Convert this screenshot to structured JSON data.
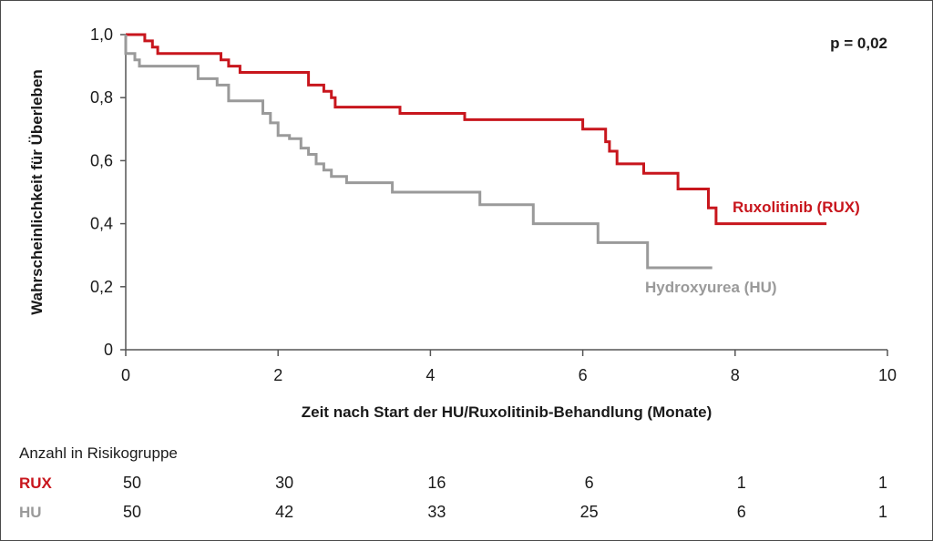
{
  "chart_data": {
    "type": "line",
    "subtype": "kaplan-meier",
    "xlabel": "Zeit nach Start der HU/Ruxolitinib-Behandlung (Monate)",
    "ylabel": "Wahrscheinlichkeit für Überleben",
    "xlim": [
      0,
      10
    ],
    "ylim": [
      0,
      1.0
    ],
    "x_ticks": [
      0,
      2,
      4,
      6,
      8,
      10
    ],
    "x_tick_labels": [
      "0",
      "2",
      "4",
      "6",
      "8",
      "10"
    ],
    "y_ticks": [
      0,
      0.2,
      0.4,
      0.6,
      0.8,
      1.0
    ],
    "y_tick_labels": [
      "0",
      "0,2",
      "0,4",
      "0,6",
      "0,8",
      "1,0"
    ],
    "grid": false,
    "annotation": "p = 0,02",
    "series": [
      {
        "name": "Ruxolitinib (RUX)",
        "color": "#c8161d",
        "step_points": [
          [
            0,
            1.0
          ],
          [
            0.25,
            1.0
          ],
          [
            0.25,
            0.98
          ],
          [
            0.35,
            0.98
          ],
          [
            0.35,
            0.96
          ],
          [
            0.42,
            0.96
          ],
          [
            0.42,
            0.94
          ],
          [
            1.25,
            0.94
          ],
          [
            1.25,
            0.92
          ],
          [
            1.35,
            0.92
          ],
          [
            1.35,
            0.9
          ],
          [
            1.5,
            0.9
          ],
          [
            1.5,
            0.88
          ],
          [
            2.4,
            0.88
          ],
          [
            2.4,
            0.84
          ],
          [
            2.6,
            0.84
          ],
          [
            2.6,
            0.82
          ],
          [
            2.7,
            0.82
          ],
          [
            2.7,
            0.8
          ],
          [
            2.75,
            0.8
          ],
          [
            2.75,
            0.77
          ],
          [
            3.6,
            0.77
          ],
          [
            3.6,
            0.75
          ],
          [
            4.45,
            0.75
          ],
          [
            4.45,
            0.73
          ],
          [
            6.0,
            0.73
          ],
          [
            6.0,
            0.7
          ],
          [
            6.3,
            0.7
          ],
          [
            6.3,
            0.66
          ],
          [
            6.35,
            0.66
          ],
          [
            6.35,
            0.63
          ],
          [
            6.45,
            0.63
          ],
          [
            6.45,
            0.59
          ],
          [
            6.8,
            0.59
          ],
          [
            6.8,
            0.56
          ],
          [
            7.25,
            0.56
          ],
          [
            7.25,
            0.51
          ],
          [
            7.65,
            0.51
          ],
          [
            7.65,
            0.45
          ],
          [
            7.75,
            0.45
          ],
          [
            7.75,
            0.4
          ],
          [
            9.2,
            0.4
          ]
        ]
      },
      {
        "name": "Hydroxyurea (HU)",
        "color": "#9a9a9a",
        "step_points": [
          [
            0,
            1.0
          ],
          [
            0,
            0.94
          ],
          [
            0.12,
            0.94
          ],
          [
            0.12,
            0.92
          ],
          [
            0.18,
            0.92
          ],
          [
            0.18,
            0.9
          ],
          [
            0.95,
            0.9
          ],
          [
            0.95,
            0.86
          ],
          [
            1.2,
            0.86
          ],
          [
            1.2,
            0.84
          ],
          [
            1.35,
            0.84
          ],
          [
            1.35,
            0.79
          ],
          [
            1.8,
            0.79
          ],
          [
            1.8,
            0.75
          ],
          [
            1.9,
            0.75
          ],
          [
            1.9,
            0.72
          ],
          [
            2.0,
            0.72
          ],
          [
            2.0,
            0.68
          ],
          [
            2.15,
            0.68
          ],
          [
            2.15,
            0.67
          ],
          [
            2.3,
            0.67
          ],
          [
            2.3,
            0.64
          ],
          [
            2.4,
            0.64
          ],
          [
            2.4,
            0.62
          ],
          [
            2.5,
            0.62
          ],
          [
            2.5,
            0.59
          ],
          [
            2.6,
            0.59
          ],
          [
            2.6,
            0.57
          ],
          [
            2.7,
            0.57
          ],
          [
            2.7,
            0.55
          ],
          [
            2.9,
            0.55
          ],
          [
            2.9,
            0.53
          ],
          [
            3.5,
            0.53
          ],
          [
            3.5,
            0.5
          ],
          [
            4.65,
            0.5
          ],
          [
            4.65,
            0.46
          ],
          [
            5.35,
            0.46
          ],
          [
            5.35,
            0.4
          ],
          [
            6.2,
            0.4
          ],
          [
            6.2,
            0.34
          ],
          [
            6.85,
            0.34
          ],
          [
            6.85,
            0.26
          ],
          [
            7.7,
            0.26
          ]
        ]
      }
    ],
    "risk_table": {
      "title": "Anzahl in Risikogruppe",
      "timepoints": [
        0,
        2,
        4,
        6,
        8,
        10
      ],
      "rows": [
        {
          "label": "RUX",
          "color": "#c8161d",
          "values": [
            "50",
            "30",
            "16",
            "6",
            "1",
            "1"
          ]
        },
        {
          "label": "HU",
          "color": "#9a9a9a",
          "values": [
            "50",
            "42",
            "33",
            "25",
            "6",
            "1"
          ]
        }
      ]
    }
  }
}
